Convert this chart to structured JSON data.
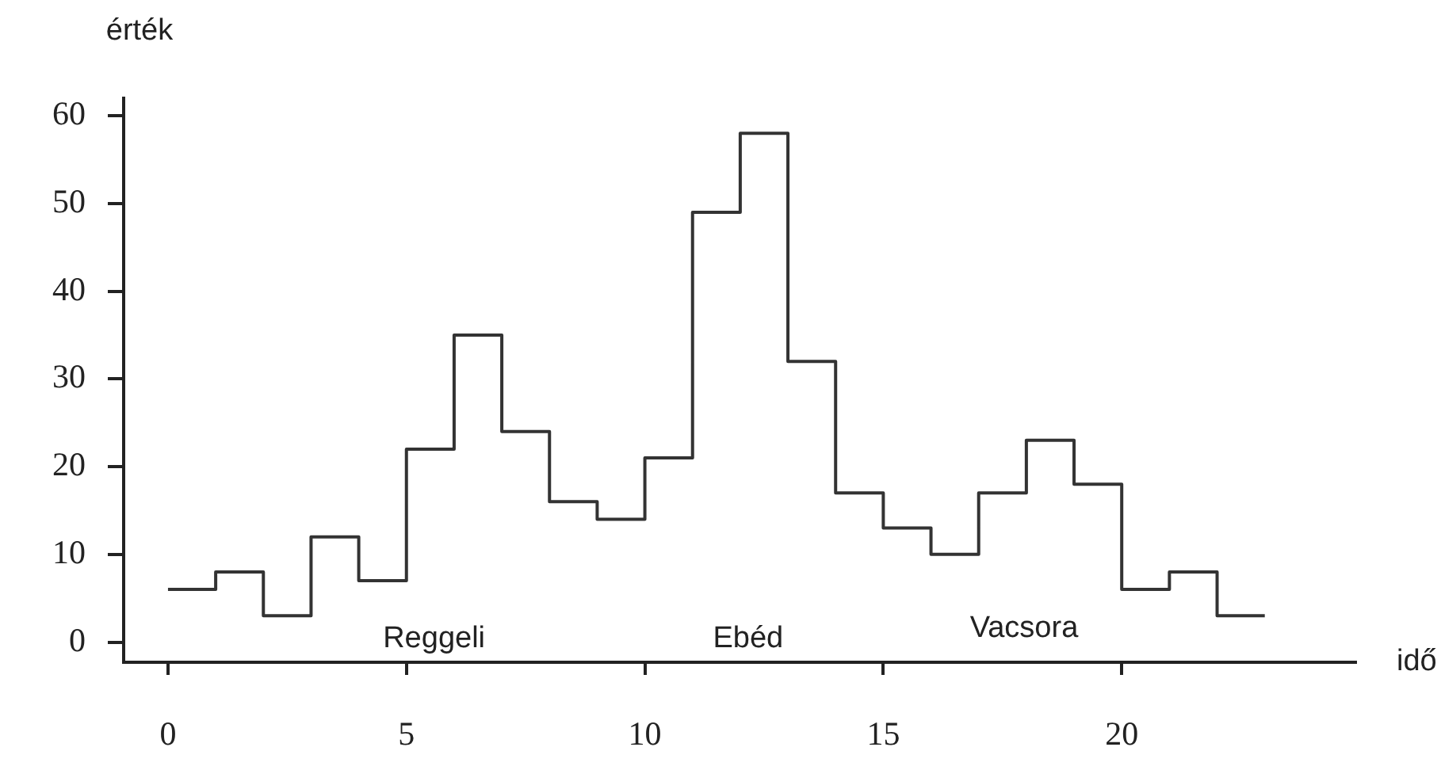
{
  "chart_data": {
    "type": "histogram",
    "xlabel": "idő",
    "ylabel": "érték",
    "bins": [
      0,
      1,
      2,
      3,
      4,
      5,
      6,
      7,
      8,
      9,
      10,
      11,
      12,
      13,
      14,
      15,
      16,
      17,
      18,
      19,
      20,
      21,
      22,
      23
    ],
    "values": [
      6,
      8,
      3,
      12,
      7,
      22,
      35,
      24,
      16,
      14,
      21,
      49,
      58,
      32,
      17,
      13,
      10,
      17,
      23,
      18,
      6,
      8,
      3
    ],
    "color": "#333333",
    "xlim": [
      -0.93,
      24.9
    ],
    "xticks": [
      0,
      5,
      10,
      15,
      20
    ],
    "ylim": [
      -2.3,
      62
    ],
    "yticks": [
      0,
      10,
      20,
      30,
      40,
      50,
      60
    ],
    "annotations": [
      "Reggeli",
      "Ebéd",
      "Vacsora"
    ]
  }
}
